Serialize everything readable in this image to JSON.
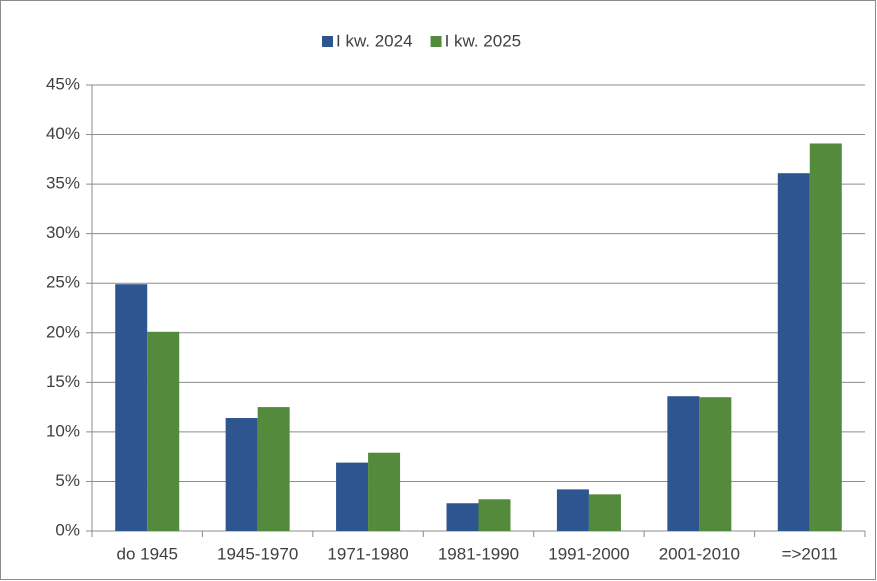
{
  "chart_data": {
    "type": "bar",
    "categories": [
      "do 1945",
      "1945-1970",
      "1971-1980",
      "1981-1990",
      "1991-2000",
      "2001-2010",
      "=>2011"
    ],
    "series": [
      {
        "name": "I kw. 2024",
        "color": "#2e5590",
        "values": [
          24.9,
          11.4,
          6.9,
          2.8,
          4.2,
          13.6,
          36.1
        ]
      },
      {
        "name": "I kw. 2025",
        "color": "#548a3b",
        "values": [
          20.1,
          12.5,
          7.9,
          3.2,
          3.7,
          13.5,
          39.1
        ]
      }
    ],
    "ylim": [
      0,
      45
    ],
    "yticks": [
      {
        "value": 0,
        "label": "0%"
      },
      {
        "value": 5,
        "label": "5%"
      },
      {
        "value": 10,
        "label": "10%"
      },
      {
        "value": 15,
        "label": "15%"
      },
      {
        "value": 20,
        "label": "20%"
      },
      {
        "value": 25,
        "label": "25%"
      },
      {
        "value": 30,
        "label": "30%"
      },
      {
        "value": 35,
        "label": "35%"
      },
      {
        "value": 40,
        "label": "40%"
      },
      {
        "value": 45,
        "label": "45%"
      }
    ],
    "grid": true,
    "legend": "top"
  }
}
